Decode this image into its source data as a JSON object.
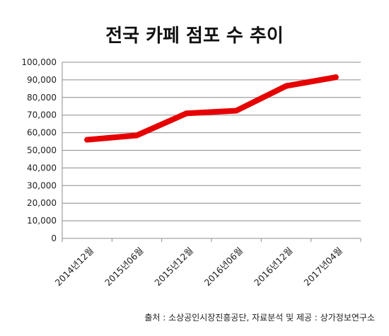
{
  "chart_data": {
    "type": "line",
    "title": "전국 카페 점포 수 추이",
    "categories": [
      "2014년12월",
      "2015년06월",
      "2015년12월",
      "2016년06월",
      "2016년12월",
      "2017년04월"
    ],
    "series": [
      {
        "values": [
          56000,
          58500,
          71000,
          72500,
          86500,
          91500
        ],
        "color": "#e60000"
      }
    ],
    "ylim": [
      0,
      100000
    ],
    "yticks": [
      "0",
      "10,000",
      "20,000",
      "30,000",
      "40,000",
      "50,000",
      "60,000",
      "70,000",
      "80,000",
      "90,000",
      "100,000"
    ],
    "grid": true,
    "source": "출처 : 소상공인시장진흥공단, 자료분석 및 제공 : 상가정보연구소"
  }
}
